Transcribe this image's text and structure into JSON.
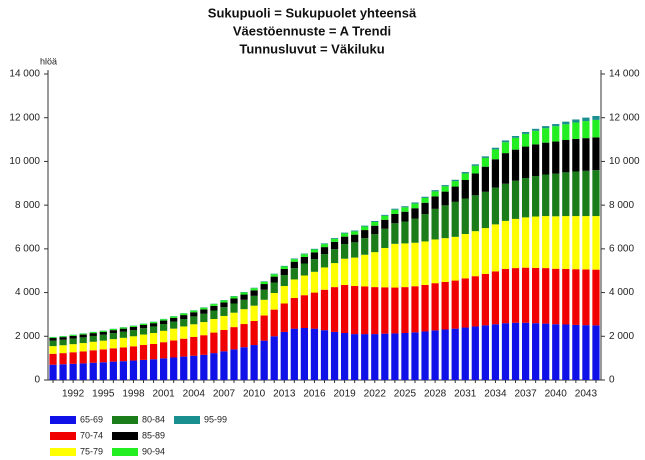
{
  "chart_data": {
    "type": "stacked_bar",
    "titles": [
      "Sukupuoli = Sukupuolet yhteensä",
      "Väestöennuste = A Trendi",
      "Tunnusluvut = Väkiluku"
    ],
    "y_label": "hlöä",
    "categories": [
      null,
      null,
      "1992",
      null,
      null,
      "1995",
      null,
      null,
      "1998",
      null,
      null,
      "2001",
      null,
      null,
      "2004",
      null,
      null,
      "2007",
      null,
      null,
      "2010",
      null,
      null,
      "2013",
      null,
      null,
      "2016",
      null,
      null,
      "2019",
      null,
      null,
      "2022",
      null,
      null,
      "2025",
      null,
      null,
      "2028",
      null,
      null,
      "2031",
      null,
      null,
      "2034",
      null,
      null,
      "2037",
      null,
      null,
      "2040",
      null,
      null,
      "2043",
      null
    ],
    "ylim": [
      0,
      14000
    ],
    "yticks": [
      0,
      {
        "value": 2000,
        "label": "2 000"
      },
      {
        "value": 4000,
        "label": "4 000"
      },
      {
        "value": 6000,
        "label": "6 000"
      },
      {
        "value": 8000,
        "label": "8 000"
      },
      {
        "value": 10000,
        "label": "10 000"
      },
      {
        "value": 12000,
        "label": "12 000"
      },
      {
        "value": 14000,
        "label": "14 000"
      }
    ],
    "series": [
      {
        "name": "65-69",
        "color": "#1010e8",
        "values": [
          700,
          720,
          740,
          760,
          790,
          810,
          840,
          860,
          890,
          920,
          950,
          990,
          1030,
          1070,
          1110,
          1150,
          1230,
          1310,
          1400,
          1500,
          1600,
          1800,
          2000,
          2200,
          2350,
          2380,
          2350,
          2280,
          2200,
          2150,
          2100,
          2100,
          2100,
          2120,
          2130,
          2150,
          2180,
          2220,
          2270,
          2310,
          2350,
          2400,
          2450,
          2500,
          2550,
          2600,
          2620,
          2620,
          2600,
          2580,
          2550,
          2540,
          2520,
          2510,
          2500
        ]
      },
      {
        "name": "70-74",
        "color": "#f00000",
        "values": [
          500,
          510,
          530,
          550,
          570,
          590,
          610,
          630,
          650,
          680,
          700,
          740,
          780,
          820,
          860,
          900,
          940,
          980,
          1020,
          1060,
          1100,
          1150,
          1220,
          1300,
          1400,
          1500,
          1650,
          1850,
          2050,
          2200,
          2200,
          2180,
          2150,
          2120,
          2100,
          2100,
          2110,
          2130,
          2160,
          2180,
          2200,
          2250,
          2300,
          2350,
          2420,
          2480,
          2500,
          2520,
          2530,
          2540,
          2540,
          2540,
          2550,
          2550,
          2550
        ]
      },
      {
        "name": "75-79",
        "color": "#ffff00",
        "values": [
          350,
          360,
          370,
          380,
          390,
          400,
          420,
          440,
          460,
          480,
          500,
          520,
          540,
          560,
          580,
          600,
          620,
          640,
          660,
          680,
          700,
          720,
          760,
          800,
          850,
          900,
          950,
          1020,
          1100,
          1200,
          1300,
          1450,
          1600,
          1800,
          2000,
          2000,
          1990,
          1990,
          2000,
          2000,
          2000,
          2030,
          2060,
          2100,
          2150,
          2200,
          2250,
          2300,
          2350,
          2380,
          2400,
          2420,
          2430,
          2440,
          2450
        ]
      },
      {
        "name": "80-84",
        "color": "#1a7d1a",
        "values": [
          250,
          250,
          255,
          260,
          265,
          270,
          275,
          280,
          285,
          290,
          300,
          310,
          320,
          340,
          360,
          380,
          390,
          400,
          420,
          430,
          450,
          460,
          480,
          500,
          520,
          550,
          580,
          610,
          640,
          670,
          700,
          760,
          820,
          880,
          940,
          1000,
          1100,
          1250,
          1400,
          1500,
          1600,
          1620,
          1640,
          1660,
          1680,
          1700,
          1750,
          1800,
          1850,
          1900,
          1950,
          2000,
          2040,
          2070,
          2100
        ]
      },
      {
        "name": "85-89",
        "color": "#000000",
        "values": [
          120,
          122,
          125,
          128,
          130,
          133,
          136,
          140,
          143,
          146,
          150,
          160,
          170,
          180,
          190,
          200,
          210,
          220,
          230,
          240,
          250,
          260,
          270,
          280,
          290,
          300,
          310,
          320,
          330,
          340,
          350,
          370,
          390,
          410,
          430,
          450,
          480,
          520,
          570,
          630,
          700,
          850,
          1000,
          1150,
          1300,
          1400,
          1420,
          1440,
          1450,
          1460,
          1470,
          1480,
          1490,
          1495,
          1500
        ]
      },
      {
        "name": "90-94",
        "color": "#22ee22",
        "values": [
          40,
          42,
          44,
          46,
          48,
          50,
          52,
          54,
          56,
          58,
          60,
          64,
          68,
          72,
          76,
          80,
          84,
          88,
          92,
          96,
          100,
          105,
          110,
          115,
          120,
          125,
          130,
          135,
          140,
          145,
          150,
          160,
          170,
          180,
          190,
          200,
          210,
          220,
          230,
          240,
          250,
          300,
          350,
          400,
          450,
          500,
          540,
          580,
          620,
          660,
          700,
          720,
          750,
          780,
          800
        ]
      },
      {
        "name": "95-99",
        "color": "#1a8f8f",
        "values": [
          10,
          10,
          10,
          10,
          10,
          10,
          10,
          10,
          10,
          10,
          10,
          12,
          12,
          14,
          14,
          16,
          16,
          18,
          18,
          20,
          20,
          22,
          24,
          26,
          28,
          30,
          32,
          34,
          36,
          38,
          40,
          42,
          44,
          46,
          48,
          50,
          52,
          54,
          56,
          58,
          60,
          64,
          68,
          72,
          76,
          80,
          84,
          88,
          92,
          96,
          100,
          120,
          140,
          160,
          180
        ]
      }
    ]
  }
}
